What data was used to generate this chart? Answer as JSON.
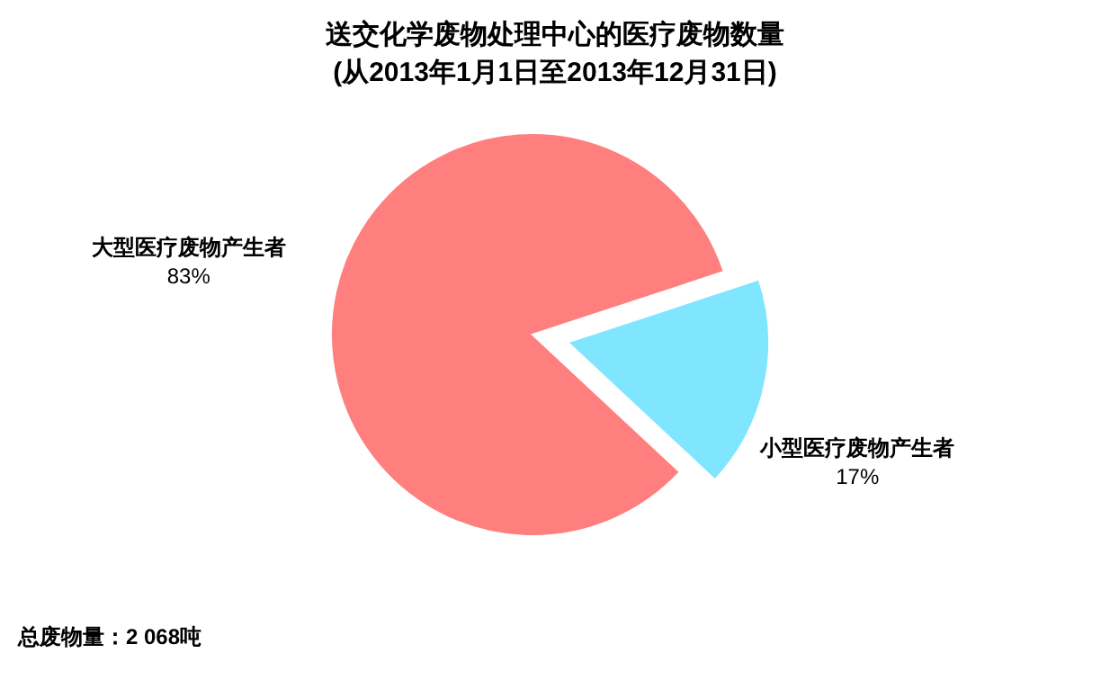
{
  "chart_data": {
    "type": "pie",
    "title": "送交化学废物处理中心的医疗废物数量",
    "subtitle": "(从2013年1月1日至2013年12月31日)",
    "categories": [
      "大型医疗废物产生者",
      "小型医疗废物产生者"
    ],
    "values": [
      83,
      17
    ],
    "colors": [
      "#ff7f7f",
      "#80e5ff"
    ],
    "value_labels": [
      "83%",
      "17%"
    ],
    "annotations": [
      "总废物量：2 068吨"
    ]
  }
}
